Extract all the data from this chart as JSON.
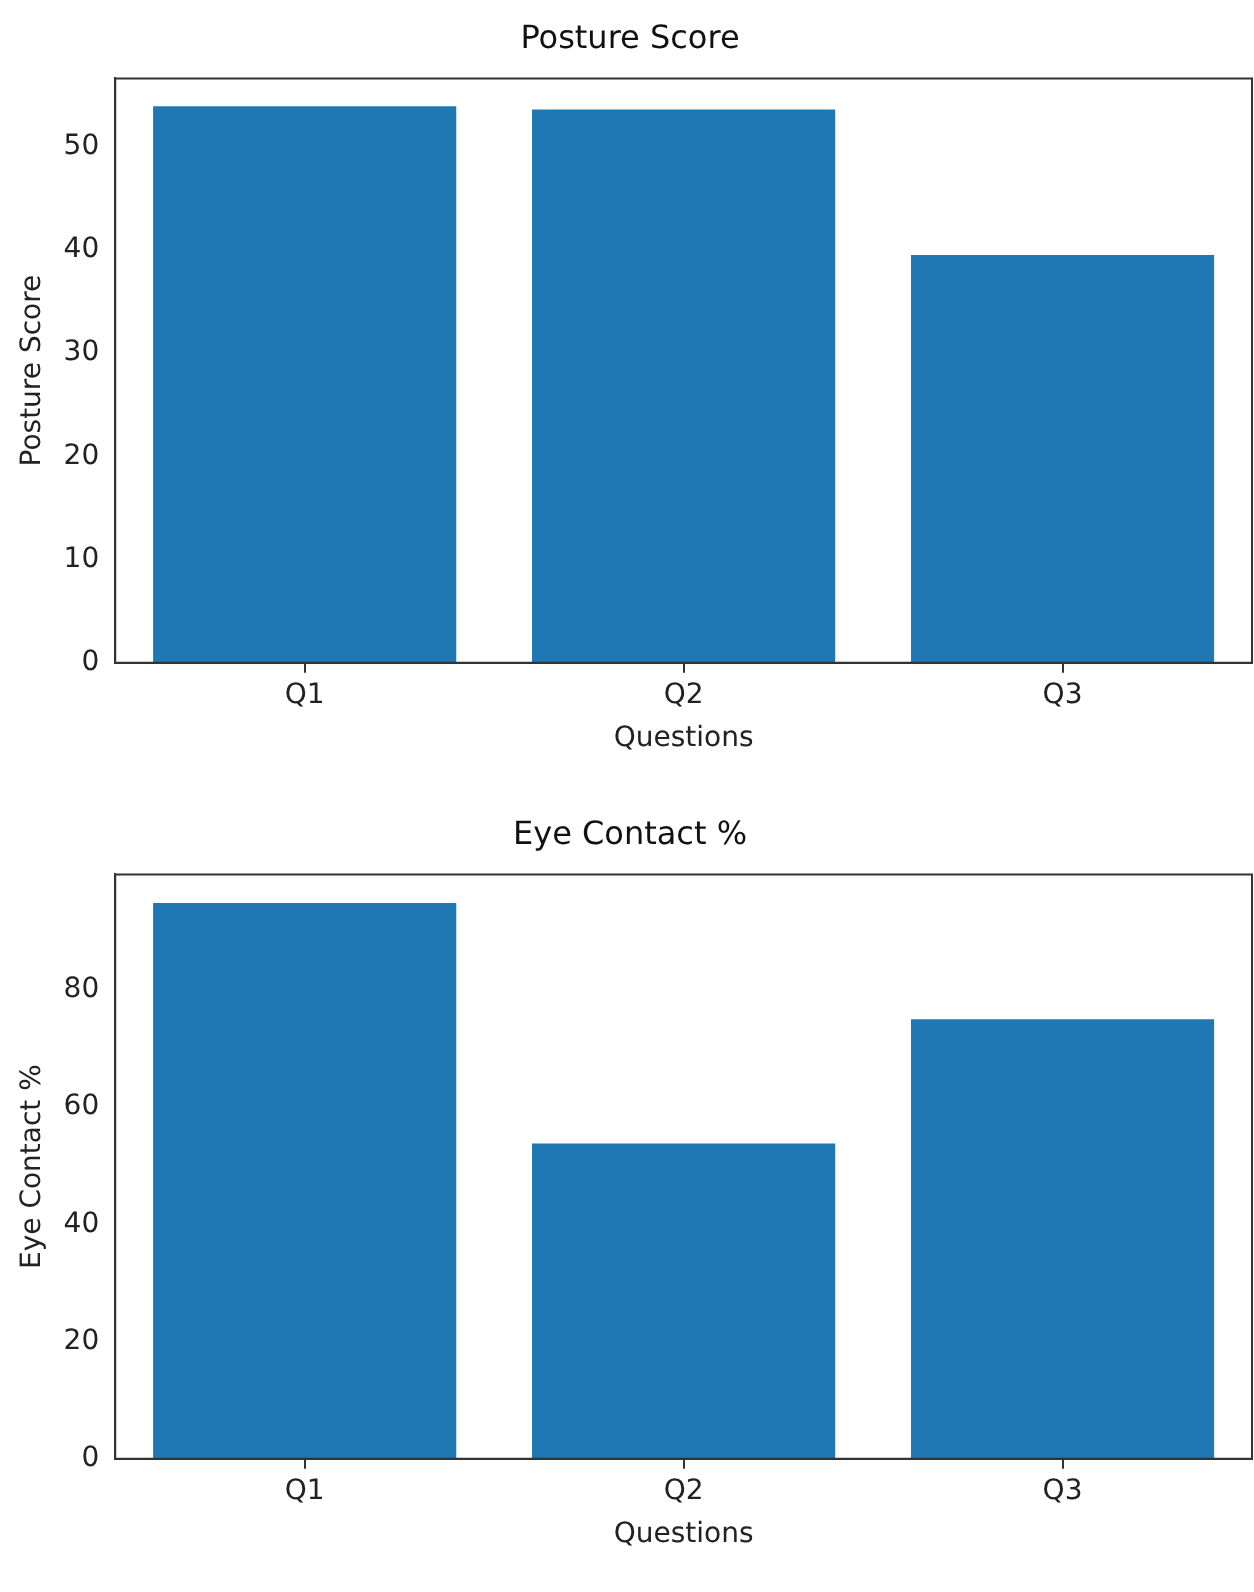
{
  "chart_data": [
    {
      "type": "bar",
      "title": "Posture Score",
      "xlabel": "Questions",
      "ylabel": "Posture Score",
      "categories": [
        "Q1",
        "Q2",
        "Q3"
      ],
      "values": [
        53.9,
        53.6,
        39.5
      ],
      "color": "#1f77b4",
      "ylim": [
        0,
        56.6
      ],
      "yticks": [
        0,
        10,
        20,
        30,
        40,
        50
      ],
      "grid": false,
      "legend": false
    },
    {
      "type": "bar",
      "title": "Eye Contact %",
      "xlabel": "Questions",
      "ylabel": "Eye Contact %",
      "categories": [
        "Q1",
        "Q2",
        "Q3"
      ],
      "values": [
        94.8,
        53.8,
        75.0
      ],
      "color": "#1f77b4",
      "ylim": [
        0,
        99.7
      ],
      "yticks": [
        0,
        20,
        40,
        60,
        80
      ],
      "grid": false,
      "legend": false
    }
  ]
}
